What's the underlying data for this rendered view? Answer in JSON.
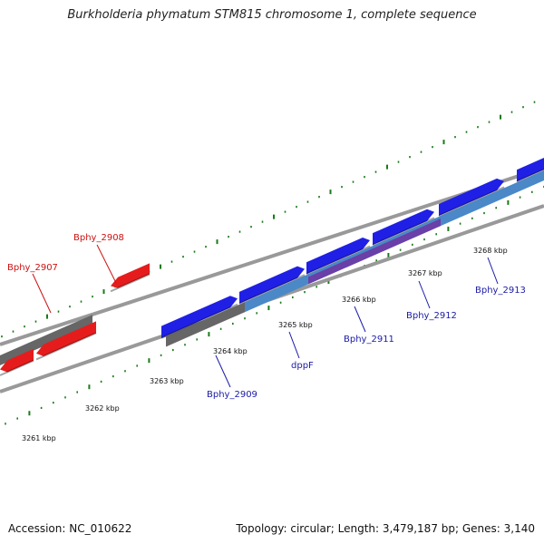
{
  "title": "Burkholderia phymatum STM815 chromosome 1, complete sequence",
  "footer": {
    "accession": "Accession: NC_010622",
    "summary": "Topology: circular; Length: 3,479,187 bp; Genes: 3,140"
  },
  "colors": {
    "forward_gene": "#1f1fe6",
    "reverse_gene": "#e61c1c",
    "gene_shadow": "#666666",
    "backbone": "#999999",
    "ticks": "#1a7a1a",
    "label_forward": "#1a1aa8",
    "label_reverse": "#cc1111"
  },
  "scale_labels": [
    "3261 kbp",
    "3262 kbp",
    "3263 kbp",
    "3264 kbp",
    "3265 kbp",
    "3266 kbp",
    "3267 kbp",
    "3268 kbp"
  ],
  "gene_labels": [
    {
      "text": "Bphy_2907",
      "strand": "reverse"
    },
    {
      "text": "Bphy_2908",
      "strand": "reverse"
    },
    {
      "text": "Bphy_2909",
      "strand": "forward"
    },
    {
      "text": "dppF",
      "strand": "forward"
    },
    {
      "text": "Bphy_2911",
      "strand": "forward"
    },
    {
      "text": "Bphy_2912",
      "strand": "forward"
    },
    {
      "text": "Bphy_2913",
      "strand": "forward"
    }
  ]
}
